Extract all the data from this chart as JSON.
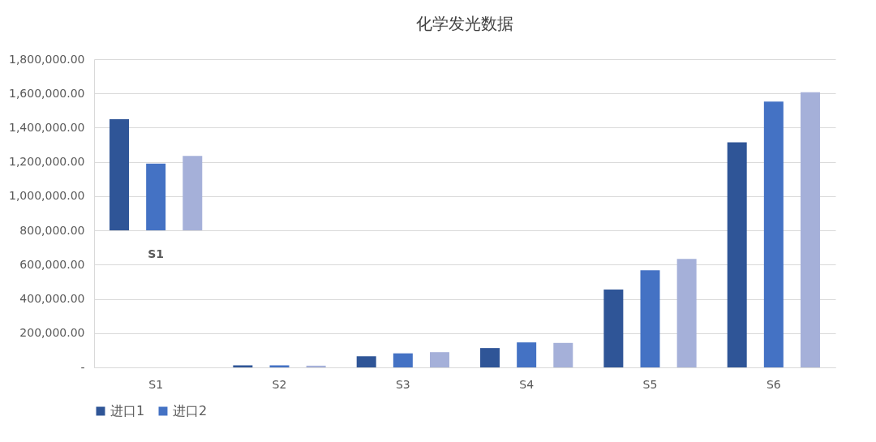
{
  "chart_data": {
    "type": "bar",
    "title": "化学发光数据",
    "categories": [
      "S1",
      "S2",
      "S3",
      "S4",
      "S5",
      "S6"
    ],
    "series": [
      {
        "name": "进口1",
        "color": "#2f5597",
        "base": [
          800000,
          0,
          0,
          0,
          0,
          0
        ],
        "values": [
          650000,
          12000,
          65000,
          113000,
          455000,
          1315000
        ]
      },
      {
        "name": "进口2",
        "color": "#4472c4",
        "base": [
          800000,
          0,
          0,
          0,
          0,
          0
        ],
        "values": [
          390000,
          12000,
          82000,
          146000,
          567000,
          1552000
        ]
      },
      {
        "color": "#a5b0d9",
        "base": [
          800000,
          0,
          0,
          0,
          0,
          0
        ],
        "values": [
          435000,
          10000,
          89000,
          143000,
          633000,
          1607000
        ]
      }
    ],
    "annotations": [
      "S1"
    ],
    "ylim": [
      0,
      1800000
    ],
    "yticks": [
      {
        "value": 0,
        "label": "-"
      },
      {
        "value": 200000,
        "label": "200,000.00"
      },
      {
        "value": 400000,
        "label": "400,000.00"
      },
      {
        "value": 600000,
        "label": "600,000.00"
      },
      {
        "value": 800000,
        "label": "800,000.00"
      },
      {
        "value": 1000000,
        "label": "1,000,000.00"
      },
      {
        "value": 1200000,
        "label": "1,200,000.00"
      },
      {
        "value": 1400000,
        "label": "1,400,000.00"
      },
      {
        "value": 1600000,
        "label": "1,600,000.00"
      },
      {
        "value": 1800000,
        "label": "1,800,000.00"
      }
    ],
    "grid": "y",
    "legend": "bottom"
  }
}
